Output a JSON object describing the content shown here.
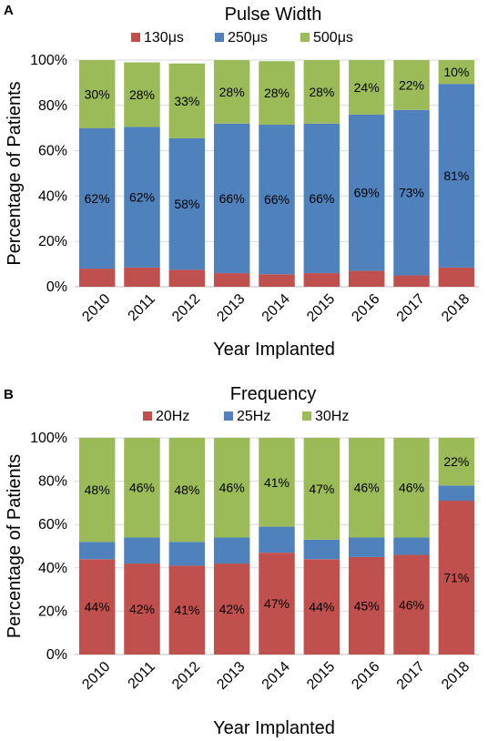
{
  "chart_data": [
    {
      "panel_label": "A",
      "type": "bar",
      "stacked": true,
      "title": "Pulse Width",
      "xlabel": "Year Implanted",
      "ylabel": "Percentage of Patients",
      "ylim": [
        0,
        100
      ],
      "y_ticks": [
        "0%",
        "20%",
        "40%",
        "60%",
        "80%",
        "100%"
      ],
      "categories": [
        "2010",
        "2011",
        "2012",
        "2013",
        "2014",
        "2015",
        "2016",
        "2017",
        "2018"
      ],
      "legend_position": "top",
      "grid": true,
      "series": [
        {
          "name": "130μs",
          "color": "#c0504d",
          "values": [
            8,
            8.5,
            7.5,
            6,
            5.5,
            6,
            7,
            5,
            8.5
          ],
          "labels": [
            "",
            "",
            "",
            "",
            "",
            "",
            "",
            "",
            ""
          ]
        },
        {
          "name": "250μs",
          "color": "#4f81bd",
          "values": [
            62,
            62,
            58,
            66,
            66,
            66,
            69,
            73,
            81
          ],
          "labels": [
            "62%",
            "62%",
            "58%",
            "66%",
            "66%",
            "66%",
            "69%",
            "73%",
            "81%"
          ]
        },
        {
          "name": "500μs",
          "color": "#9bbb59",
          "values": [
            30,
            28.5,
            33,
            28,
            28,
            28,
            24,
            22,
            10.5
          ],
          "labels": [
            "30%",
            "28%",
            "33%",
            "28%",
            "28%",
            "28%",
            "24%",
            "22%",
            "10%"
          ]
        }
      ]
    },
    {
      "panel_label": "B",
      "type": "bar",
      "stacked": true,
      "title": "Frequency",
      "xlabel": "Year Implanted",
      "ylabel": "Percentage of Patients",
      "ylim": [
        0,
        100
      ],
      "y_ticks": [
        "0%",
        "20%",
        "40%",
        "60%",
        "80%",
        "100%"
      ],
      "categories": [
        "2010",
        "2011",
        "2012",
        "2013",
        "2014",
        "2015",
        "2016",
        "2017",
        "2018"
      ],
      "legend_position": "top",
      "grid": true,
      "series": [
        {
          "name": "20Hz",
          "color": "#c0504d",
          "values": [
            44,
            42,
            41,
            42,
            47,
            44,
            45,
            46,
            71
          ],
          "labels": [
            "44%",
            "42%",
            "41%",
            "42%",
            "47%",
            "44%",
            "45%",
            "46%",
            "71%"
          ]
        },
        {
          "name": "25Hz",
          "color": "#4f81bd",
          "values": [
            8,
            12,
            11,
            12,
            12,
            9,
            9,
            8,
            7
          ],
          "labels": [
            "",
            "",
            "",
            "",
            "",
            "",
            "",
            "",
            ""
          ]
        },
        {
          "name": "30Hz",
          "color": "#9bbb59",
          "values": [
            48,
            46,
            48,
            46,
            41,
            47,
            46,
            46,
            22
          ],
          "labels": [
            "48%",
            "46%",
            "48%",
            "46%",
            "41%",
            "47%",
            "46%",
            "46%",
            "22%"
          ]
        }
      ]
    }
  ]
}
